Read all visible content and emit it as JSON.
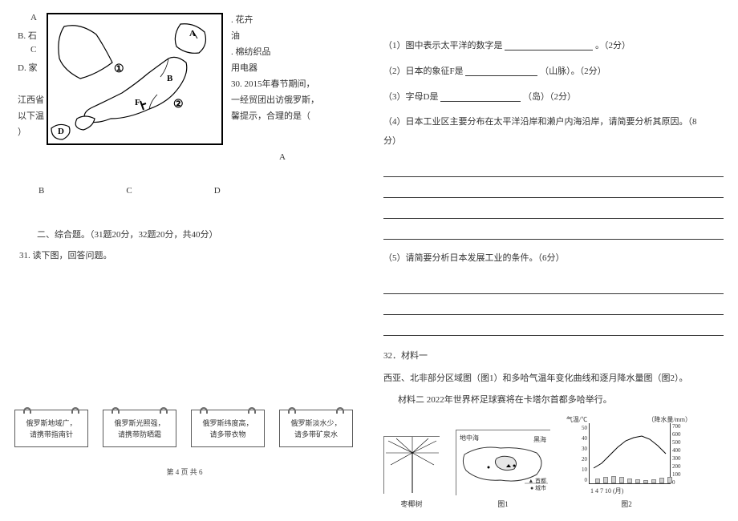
{
  "leftOptions": {
    "A_left": "A",
    "A_right": ". 花卉",
    "B_left": "B. 石",
    "B_right": "油",
    "C_left": "C",
    "C_right": ". 棉纺织品",
    "D_left": "D. 家",
    "D_right": "用电器"
  },
  "mapLabels": {
    "A": "A",
    "one": "①",
    "B": "B",
    "F": "F",
    "two": "②",
    "D": "D"
  },
  "q30": {
    "l1": "30. 2015年春节期间，",
    "l2": "一经贸团出访俄罗斯，",
    "l3": "馨提示，合理的是（",
    "province": "江西省",
    "tip": "以下温",
    "paren": "）"
  },
  "letterRow": {
    "A": "A",
    "B": "B",
    "C": "C",
    "D": "D"
  },
  "section2": "二、综合题。（31题20分，32题20分，共40分）",
  "q31_stem": "31. 读下图，回答问题。",
  "cards": [
    {
      "l1": "俄罗斯地域广，",
      "l2": "请携带指南针"
    },
    {
      "l1": "俄罗斯光照强，",
      "l2": "请携带防晒霜"
    },
    {
      "l1": "俄罗斯纬度高，",
      "l2": "请多带衣物"
    },
    {
      "l1": "俄罗斯淡水少，",
      "l2": "请多带矿泉水"
    }
  ],
  "pagefoot": "第 4 页 共 6",
  "right": {
    "p1_a": "（1）图中表示太平洋的数字是",
    "p1_b": "。（2分）",
    "p2_a": "（2）日本的象征F是",
    "p2_b": "（山脉）。（2分）",
    "p3_a": "（3）字母D是",
    "p3_b": "（岛）（2分）",
    "p4_a": "（4）日本工业区主要分布在太平洋沿岸和濑户内海沿岸，请简要分析其原因。（8",
    "p4_b": "分）",
    "p5": "（5）请简要分析日本发展工业的条件。（6分）"
  },
  "q32": {
    "head": "32．材料一",
    "line1": "西亚、北非部分区域图（图1）和多哈气温年变化曲线和逐月降水量图（图2）。",
    "line2": "材料二   2022年世界杯足球赛将在卡塔尔首都多哈举行。",
    "tree_cap": "枣椰树",
    "fig1_cap": "图1",
    "fig2_cap": "图2"
  },
  "chart": {
    "left_title": "气温/℃",
    "right_title": "（降水量/mm）",
    "left_ticks": [
      "50",
      "40",
      "30",
      "20",
      "10",
      "0"
    ],
    "right_ticks": [
      "700",
      "600",
      "500",
      "400",
      "300",
      "200",
      "100",
      "0"
    ],
    "x_ticks": "1   4   7   10 (月)",
    "bars": [
      {
        "x": 36,
        "h": 6
      },
      {
        "x": 46,
        "h": 8
      },
      {
        "x": 56,
        "h": 9
      },
      {
        "x": 66,
        "h": 8
      },
      {
        "x": 76,
        "h": 6
      },
      {
        "x": 86,
        "h": 5
      },
      {
        "x": 96,
        "h": 4
      },
      {
        "x": 106,
        "h": 5
      },
      {
        "x": 116,
        "h": 7
      },
      {
        "x": 126,
        "h": 8
      }
    ],
    "map2_labels": {
      "sea1": "地中海",
      "sea2": "黑海",
      "leg1": "▲ 首都",
      "leg2": "● 城市"
    }
  }
}
